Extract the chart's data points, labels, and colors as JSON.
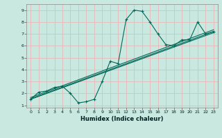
{
  "xlabel": "Humidex (Indice chaleur)",
  "ylabel": "",
  "xlim": [
    -0.5,
    23.5
  ],
  "ylim": [
    0.8,
    9.5
  ],
  "xticks": [
    0,
    1,
    2,
    3,
    4,
    5,
    6,
    7,
    8,
    9,
    10,
    11,
    12,
    13,
    14,
    15,
    16,
    17,
    18,
    19,
    20,
    21,
    22,
    23
  ],
  "yticks": [
    1,
    2,
    3,
    4,
    5,
    6,
    7,
    8,
    9
  ],
  "bg_color": "#c8e8e0",
  "grid_color": "#e8b8b8",
  "line_color": "#006858",
  "curve_x": [
    0,
    1,
    2,
    3,
    4,
    5,
    6,
    7,
    8,
    9,
    10,
    11,
    12,
    13,
    14,
    15,
    16,
    17,
    18,
    19,
    20,
    21,
    22,
    23
  ],
  "curve_y": [
    1.5,
    2.1,
    2.2,
    2.5,
    2.6,
    2.0,
    1.2,
    1.3,
    1.5,
    3.0,
    4.7,
    4.5,
    8.2,
    9.0,
    8.9,
    8.0,
    7.0,
    6.1,
    6.0,
    6.5,
    6.5,
    8.0,
    7.0,
    7.2
  ],
  "line1_x": [
    0,
    23
  ],
  "line1_y": [
    1.5,
    7.1
  ],
  "line2_x": [
    0,
    23
  ],
  "line2_y": [
    1.65,
    7.35
  ],
  "line3_x": [
    0,
    23
  ],
  "line3_y": [
    1.55,
    7.2
  ]
}
